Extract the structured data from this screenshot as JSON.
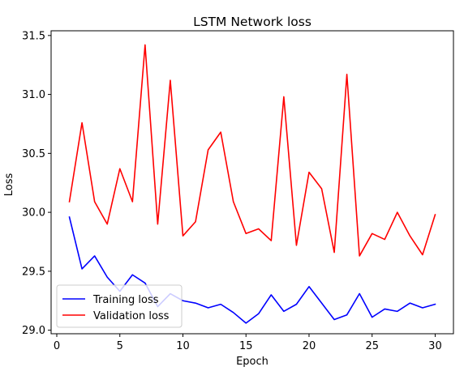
{
  "chart_data": {
    "type": "line",
    "title": "LSTM Network loss",
    "xlabel": "Epoch",
    "ylabel": "Loss",
    "xlim": [
      -0.45,
      31.45
    ],
    "ylim": [
      28.97,
      31.54
    ],
    "xticks": [
      0,
      5,
      10,
      15,
      20,
      25,
      30
    ],
    "yticks": [
      29.0,
      29.5,
      30.0,
      30.5,
      31.0,
      31.5
    ],
    "ytick_labels": [
      "29.0",
      "29.5",
      "30.0",
      "30.5",
      "31.0",
      "31.5"
    ],
    "grid": false,
    "legend_position": "lower-left",
    "x": [
      1,
      2,
      3,
      4,
      5,
      6,
      7,
      8,
      9,
      10,
      11,
      12,
      13,
      14,
      15,
      16,
      17,
      18,
      19,
      20,
      21,
      22,
      23,
      24,
      25,
      26,
      27,
      28,
      29,
      30
    ],
    "series": [
      {
        "name": "Training loss",
        "color": "#0000ff",
        "values": [
          29.96,
          29.52,
          29.63,
          29.45,
          29.33,
          29.47,
          29.4,
          29.2,
          29.31,
          29.25,
          29.23,
          29.19,
          29.22,
          29.15,
          29.06,
          29.14,
          29.3,
          29.16,
          29.22,
          29.37,
          29.23,
          29.09,
          29.13,
          29.31,
          29.11,
          29.18,
          29.16,
          29.23,
          29.19,
          29.22
        ]
      },
      {
        "name": "Validation loss",
        "color": "#ff0000",
        "values": [
          30.09,
          30.76,
          30.09,
          29.9,
          30.37,
          30.09,
          31.42,
          29.9,
          31.12,
          29.8,
          29.92,
          30.53,
          30.68,
          30.09,
          29.82,
          29.86,
          29.76,
          30.98,
          29.72,
          30.34,
          30.2,
          29.66,
          31.17,
          29.63,
          29.82,
          29.77,
          30.0,
          29.8,
          29.64,
          29.98
        ]
      }
    ]
  }
}
